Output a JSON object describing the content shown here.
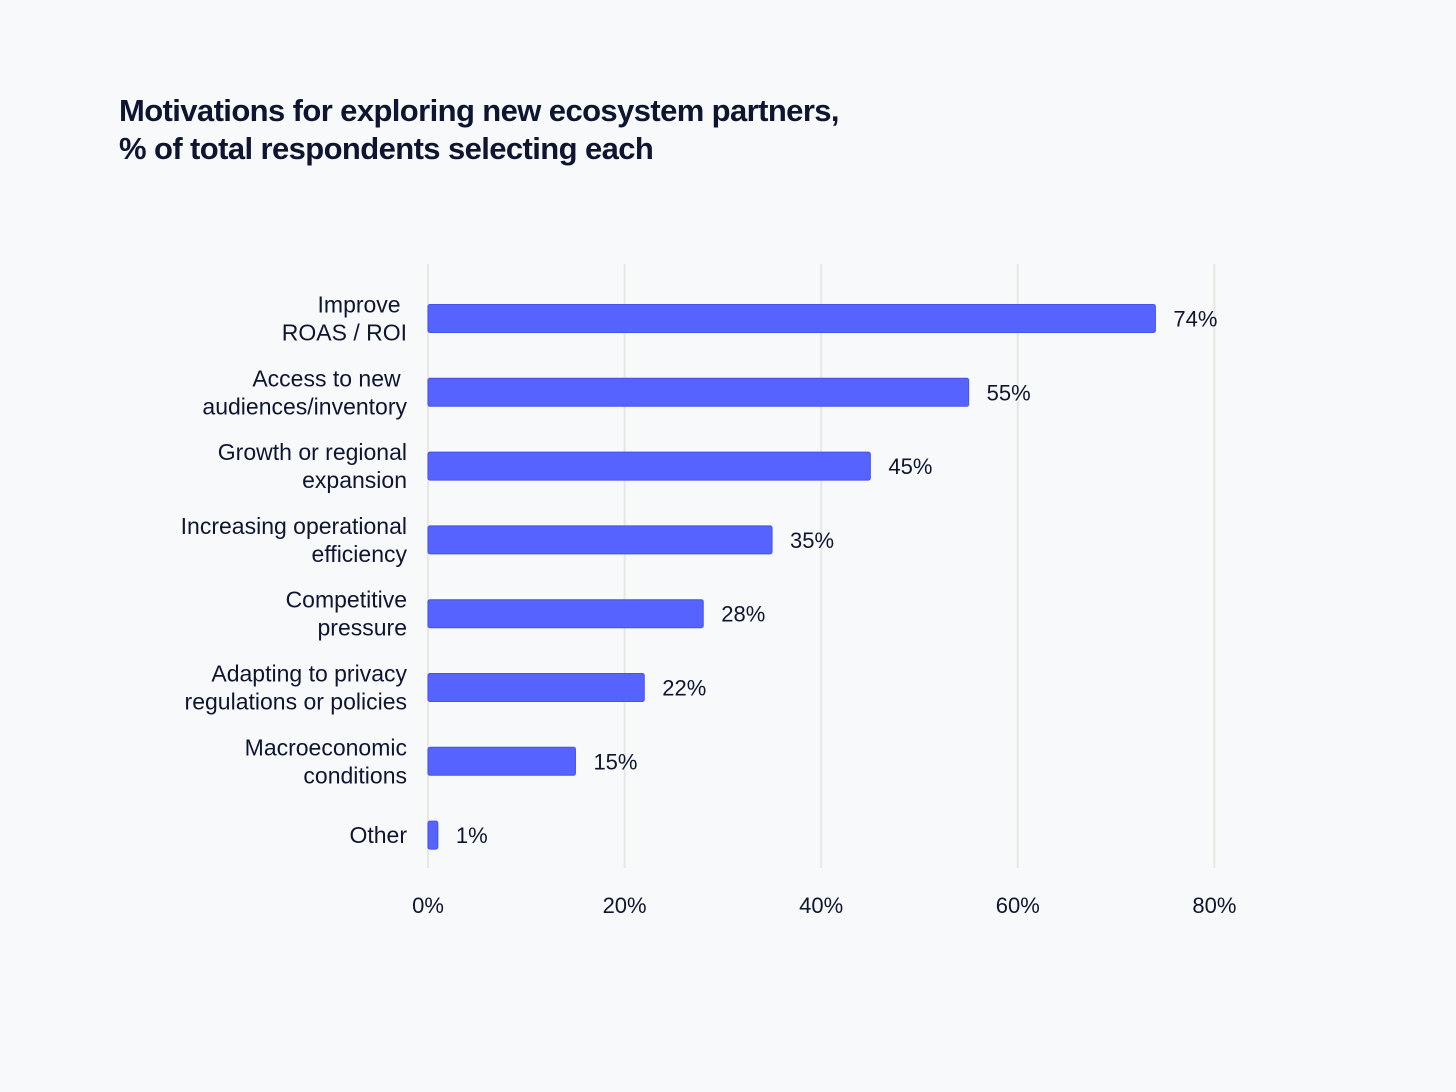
{
  "title": {
    "line1": "Motivations for exploring new ecosystem partners,",
    "line2": "% of total respondents selecting each"
  },
  "colors": {
    "bar": "#5663fe",
    "bar_stroke": "#4452ee",
    "gridline": "#e7e7e3",
    "text": "#0e1530",
    "background": "#f8f9fb"
  },
  "chart_data": {
    "type": "bar",
    "orientation": "horizontal",
    "title": "Motivations for exploring new ecosystem partners, % of total respondents selecting each",
    "categories": [
      [
        "Improve ",
        "ROAS / ROI"
      ],
      [
        "Access to new ",
        "audiences/inventory"
      ],
      [
        "Growth or regional",
        "expansion"
      ],
      [
        "Increasing operational",
        "efficiency"
      ],
      [
        "Competitive",
        "pressure"
      ],
      [
        "Adapting to privacy",
        "regulations or policies"
      ],
      [
        "Macroeconomic",
        "conditions"
      ],
      [
        "Other"
      ]
    ],
    "values": [
      74,
      55,
      45,
      35,
      28,
      22,
      15,
      1
    ],
    "value_labels": [
      "74%",
      "55%",
      "45%",
      "35%",
      "28%",
      "22%",
      "15%",
      "1%"
    ],
    "xlim": [
      0,
      80
    ],
    "xticks": [
      0,
      20,
      40,
      60,
      80
    ],
    "xtick_labels": [
      "0%",
      "20%",
      "40%",
      "60%",
      "80%"
    ],
    "grid": true,
    "xlabel": "",
    "ylabel": ""
  }
}
